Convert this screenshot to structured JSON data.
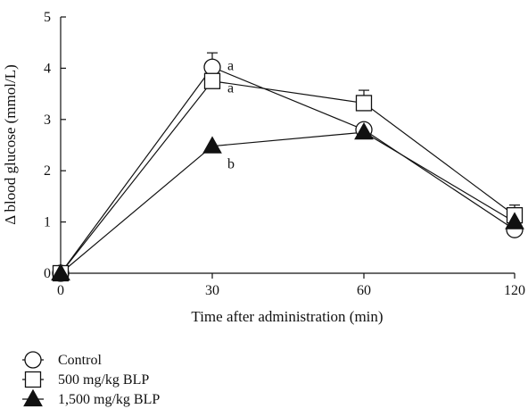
{
  "chart_data": {
    "type": "line",
    "title": "",
    "xlabel": "Time after administration (min)",
    "ylabel": "Δ blood glucose (mmol/L)",
    "x_categories": [
      "0",
      "30",
      "60",
      "120"
    ],
    "ylim": [
      0,
      5
    ],
    "yticks": [
      "0",
      "1",
      "2",
      "3",
      "4",
      "5"
    ],
    "grid": false,
    "legend_position": "bottom-left",
    "series": [
      {
        "name": "Control",
        "marker": "circle-open",
        "values": [
          0,
          4.02,
          2.8,
          0.85
        ],
        "error_up": [
          0,
          0.28,
          0,
          0
        ]
      },
      {
        "name": "500 mg/kg BLP",
        "marker": "square-open",
        "values": [
          0,
          3.75,
          3.32,
          1.13
        ],
        "error_up": [
          0,
          0,
          0.25,
          0.2
        ]
      },
      {
        "name": "1,500 mg/kg BLP",
        "marker": "triangle-filled",
        "values": [
          0,
          2.48,
          2.75,
          1.0
        ],
        "error_up": [
          0,
          0,
          0,
          0
        ]
      }
    ],
    "annotations": [
      {
        "text": "a",
        "x": "30",
        "y": 4.02
      },
      {
        "text": "a",
        "x": "30",
        "y": 3.58
      },
      {
        "text": "b",
        "x": "30",
        "y": 2.1
      }
    ]
  }
}
